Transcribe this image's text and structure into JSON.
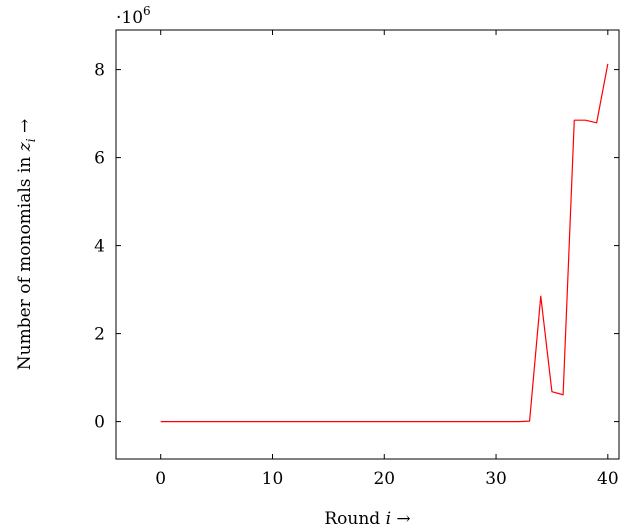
{
  "chart_data": {
    "type": "line",
    "title": "",
    "xlabel": "Round i →",
    "ylabel": "Number of monomials in z_i →",
    "xlabel_parts": {
      "prefix": "Round ",
      "var": "i",
      "arrow": " →"
    },
    "ylabel_parts": {
      "prefix": "Number of monomials in ",
      "var": "z",
      "sub": "i",
      "arrow": " →"
    },
    "y_multiplier": {
      "base": "·10",
      "exp": "6"
    },
    "xlim": [
      -4,
      41
    ],
    "ylim": [
      -0.85,
      8.9
    ],
    "x_ticks": [
      0,
      10,
      20,
      30,
      40
    ],
    "x_tick_labels": [
      "0",
      "10",
      "20",
      "30",
      "40"
    ],
    "y_ticks": [
      0,
      2,
      4,
      6,
      8
    ],
    "y_tick_labels": [
      "0",
      "2",
      "4",
      "6",
      "8"
    ],
    "grid": false,
    "series_color": "#ff0000",
    "series": [
      {
        "x": [
          0,
          1,
          2,
          3,
          4,
          5,
          6,
          7,
          8,
          9,
          10,
          11,
          12,
          13,
          14,
          15,
          16,
          17,
          18,
          19,
          20,
          21,
          22,
          23,
          24,
          25,
          26,
          27,
          28,
          29,
          30,
          31,
          32,
          33,
          34,
          35,
          36,
          37,
          38,
          39,
          40
        ],
        "y": [
          0,
          0,
          0,
          0,
          0,
          0,
          0,
          0,
          0,
          0,
          0,
          0,
          0,
          0,
          0,
          0,
          0,
          0,
          0,
          0,
          0,
          0,
          0,
          0,
          0,
          0,
          0,
          0,
          0,
          0,
          0,
          0,
          0,
          0.01,
          2.85,
          0.68,
          0.61,
          6.85,
          6.85,
          6.79,
          8.13
        ]
      }
    ]
  }
}
